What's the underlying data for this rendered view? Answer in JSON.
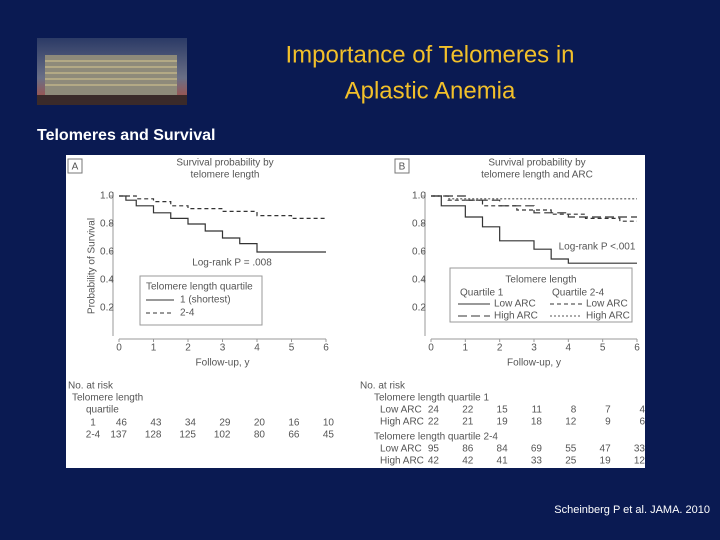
{
  "header": {
    "title_lines": [
      "Importance of Telomeres in",
      "Aplastic Anemia"
    ],
    "subtitle": "Telomeres and Survival"
  },
  "citation": "Scheinberg P et al. JAMA. 2010",
  "chart_data": [
    {
      "type": "step",
      "panel_label": "A",
      "title_lines": [
        "Survival probability by",
        "telomere length"
      ],
      "x_label": "Follow-up, y",
      "y_label": "Probability of Survival",
      "annotation": "Log-rank P = .008",
      "xlim": [
        0,
        6
      ],
      "xticks": [
        0,
        1,
        2,
        3,
        4,
        5,
        6
      ],
      "ylim": [
        0,
        1
      ],
      "yticks": [
        0.2,
        0.4,
        0.6,
        0.8,
        {
          "value": 1,
          "label": "1.0"
        }
      ],
      "legend_title": "Telomere length quartile",
      "series": [
        {
          "name": "1 (shortest)",
          "color": "#333333",
          "dash": "solid",
          "x": [
            0,
            0.2,
            0.2,
            0.5,
            0.5,
            1,
            1,
            1.5,
            1.5,
            2,
            2,
            2.5,
            2.5,
            3,
            3,
            3.5,
            3.5,
            4,
            4,
            6
          ],
          "values": [
            1,
            1,
            0.97,
            0.97,
            0.93,
            0.93,
            0.88,
            0.88,
            0.84,
            0.84,
            0.8,
            0.8,
            0.75,
            0.75,
            0.7,
            0.7,
            0.66,
            0.66,
            0.6,
            0.6
          ]
        },
        {
          "name": "2-4",
          "color": "#333333",
          "dash": "dashed",
          "x": [
            0,
            0.5,
            0.5,
            1,
            1,
            1.5,
            1.5,
            2,
            2,
            3,
            3,
            4,
            4,
            5,
            5,
            6
          ],
          "values": [
            1,
            1,
            0.98,
            0.98,
            0.96,
            0.96,
            0.93,
            0.93,
            0.91,
            0.91,
            0.89,
            0.89,
            0.86,
            0.86,
            0.84,
            0.84
          ]
        }
      ],
      "risk_table": {
        "heading": "No. at risk",
        "label_lines": [
          "Telomere length",
          "quartile"
        ],
        "rows": [
          {
            "name": "1",
            "values": [
              46,
              43,
              34,
              29,
              20,
              16,
              10
            ]
          },
          {
            "name": "2-4",
            "values": [
              137,
              128,
              125,
              102,
              80,
              66,
              45
            ]
          }
        ]
      }
    },
    {
      "type": "step",
      "panel_label": "B",
      "title_lines": [
        "Survival probability by",
        "telomere length and ARC"
      ],
      "x_label": "Follow-up, y",
      "annotation": "Log-rank P <.001",
      "xlim": [
        0,
        6
      ],
      "xticks": [
        0,
        1,
        2,
        3,
        4,
        5,
        6
      ],
      "ylim": [
        0,
        1
      ],
      "yticks": [
        0.2,
        0.4,
        0.6,
        0.8,
        {
          "value": 1,
          "label": "1.0"
        }
      ],
      "legend_title": "Telomere length",
      "legend_groups": [
        "Quartile 1",
        "Quartile 2-4"
      ],
      "series": [
        {
          "name": "Low ARC",
          "color": "#333333",
          "dash": "solid",
          "x": [
            0,
            0.3,
            0.3,
            1,
            1,
            1.5,
            1.5,
            2,
            2,
            3,
            3,
            3.5,
            3.5,
            4,
            4,
            6
          ],
          "values": [
            1,
            1,
            0.93,
            0.93,
            0.85,
            0.85,
            0.78,
            0.78,
            0.68,
            0.68,
            0.62,
            0.62,
            0.55,
            0.55,
            0.52,
            0.52
          ]
        },
        {
          "name": "High ARC",
          "color": "#333333",
          "dash": "longdash",
          "x": [
            0,
            1,
            1,
            2,
            2,
            3,
            3,
            4,
            4,
            6
          ],
          "values": [
            1,
            1,
            0.97,
            0.97,
            0.93,
            0.93,
            0.88,
            0.88,
            0.85,
            0.85
          ]
        },
        {
          "name": "Low ARC",
          "color": "#333333",
          "dash": "dashed",
          "x": [
            0,
            0.5,
            0.5,
            1.5,
            1.5,
            2.5,
            2.5,
            3.5,
            3.5,
            4.5,
            4.5,
            5.5,
            5.5,
            6
          ],
          "values": [
            1,
            1,
            0.97,
            0.97,
            0.93,
            0.93,
            0.9,
            0.9,
            0.87,
            0.87,
            0.84,
            0.84,
            0.82,
            0.82
          ]
        },
        {
          "name": "High ARC",
          "color": "#555555",
          "dash": "dotted",
          "x": [
            0,
            0.5,
            0.5,
            6
          ],
          "values": [
            1,
            1,
            0.98,
            0.98
          ]
        }
      ],
      "risk_table": {
        "heading": "No. at risk",
        "groups": [
          {
            "label": "Telomere length quartile 1",
            "rows": [
              {
                "name": "Low ARC",
                "values": [
                  24,
                  22,
                  15,
                  11,
                  8,
                  7,
                  4
                ]
              },
              {
                "name": "High ARC",
                "values": [
                  22,
                  21,
                  19,
                  18,
                  12,
                  9,
                  6
                ]
              }
            ]
          },
          {
            "label": "Telomere length quartile 2-4",
            "rows": [
              {
                "name": "Low ARC",
                "values": [
                  95,
                  86,
                  84,
                  69,
                  55,
                  47,
                  33
                ]
              },
              {
                "name": "High ARC",
                "values": [
                  42,
                  42,
                  41,
                  33,
                  25,
                  19,
                  12
                ]
              }
            ]
          }
        ]
      }
    }
  ]
}
